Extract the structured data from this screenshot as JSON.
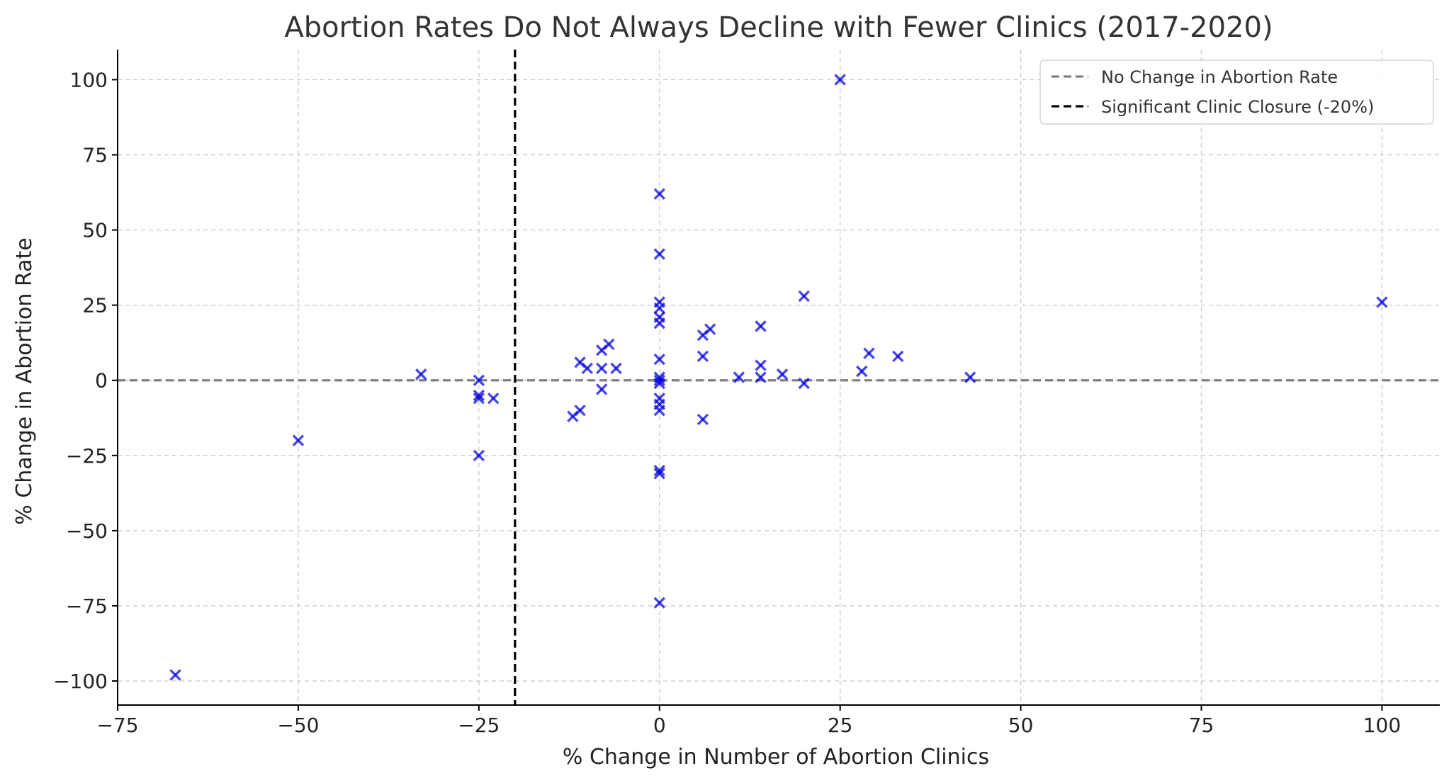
{
  "chart_data": {
    "type": "scatter",
    "title": "Abortion Rates Do Not Always Decline with Fewer Clinics (2017-2020)",
    "xlabel": "% Change in Number of Abortion Clinics",
    "ylabel": "% Change in Abortion Rate",
    "xlim": [
      -75,
      108
    ],
    "ylim": [
      -108,
      110
    ],
    "x_ticks": [
      -75,
      -50,
      -25,
      0,
      25,
      50,
      75,
      100
    ],
    "y_ticks": [
      -100,
      -75,
      -50,
      -25,
      0,
      25,
      50,
      75,
      100
    ],
    "x_tick_labels": [
      "−75",
      "−50",
      "−25",
      "0",
      "25",
      "50",
      "75",
      "100"
    ],
    "y_tick_labels": [
      "−100",
      "−75",
      "−50",
      "−25",
      "0",
      "25",
      "50",
      "75",
      "100"
    ],
    "grid": true,
    "legend": {
      "position": "top-right",
      "entries": [
        {
          "label": "No Change in Abortion Rate",
          "color": "#808080",
          "style": "dashed"
        },
        {
          "label": "Significant Clinic Closure (-20%)",
          "color": "#000000",
          "style": "dashed"
        }
      ]
    },
    "reference_lines": [
      {
        "orientation": "horizontal",
        "value": 0,
        "label": "No Change in Abortion Rate",
        "color": "#808080"
      },
      {
        "orientation": "vertical",
        "value": -20,
        "label": "Significant Clinic Closure (-20%)",
        "color": "#000000"
      }
    ],
    "marker": {
      "shape": "x",
      "color": "#0000dd"
    },
    "points": [
      {
        "x": -67,
        "y": -98
      },
      {
        "x": -50,
        "y": -20
      },
      {
        "x": -33,
        "y": 2
      },
      {
        "x": -25,
        "y": 0
      },
      {
        "x": -25,
        "y": -5
      },
      {
        "x": -25,
        "y": -6
      },
      {
        "x": -25,
        "y": -25
      },
      {
        "x": -23,
        "y": -6
      },
      {
        "x": -12,
        "y": -12
      },
      {
        "x": -11,
        "y": -10
      },
      {
        "x": -11,
        "y": 6
      },
      {
        "x": -10,
        "y": 4
      },
      {
        "x": -8,
        "y": 10
      },
      {
        "x": -8,
        "y": 4
      },
      {
        "x": -8,
        "y": -3
      },
      {
        "x": -7,
        "y": 12
      },
      {
        "x": -6,
        "y": 4
      },
      {
        "x": 0,
        "y": 62
      },
      {
        "x": 0,
        "y": 42
      },
      {
        "x": 0,
        "y": 26
      },
      {
        "x": 0,
        "y": 24
      },
      {
        "x": 0,
        "y": 21
      },
      {
        "x": 0,
        "y": 19
      },
      {
        "x": 0,
        "y": 7
      },
      {
        "x": 0,
        "y": 1
      },
      {
        "x": 0,
        "y": 0
      },
      {
        "x": 0,
        "y": -1
      },
      {
        "x": 0,
        "y": -6
      },
      {
        "x": 0,
        "y": -8
      },
      {
        "x": 0,
        "y": -10
      },
      {
        "x": 0,
        "y": -30
      },
      {
        "x": 0,
        "y": -31
      },
      {
        "x": 0,
        "y": -74
      },
      {
        "x": 6,
        "y": 15
      },
      {
        "x": 6,
        "y": 8
      },
      {
        "x": 6,
        "y": -13
      },
      {
        "x": 7,
        "y": 17
      },
      {
        "x": 11,
        "y": 1
      },
      {
        "x": 14,
        "y": 18
      },
      {
        "x": 14,
        "y": 5
      },
      {
        "x": 14,
        "y": 1
      },
      {
        "x": 17,
        "y": 2
      },
      {
        "x": 20,
        "y": 28
      },
      {
        "x": 20,
        "y": -1
      },
      {
        "x": 25,
        "y": 100
      },
      {
        "x": 28,
        "y": 3
      },
      {
        "x": 29,
        "y": 9
      },
      {
        "x": 33,
        "y": 8
      },
      {
        "x": 43,
        "y": 1
      },
      {
        "x": 100,
        "y": 26
      }
    ]
  }
}
